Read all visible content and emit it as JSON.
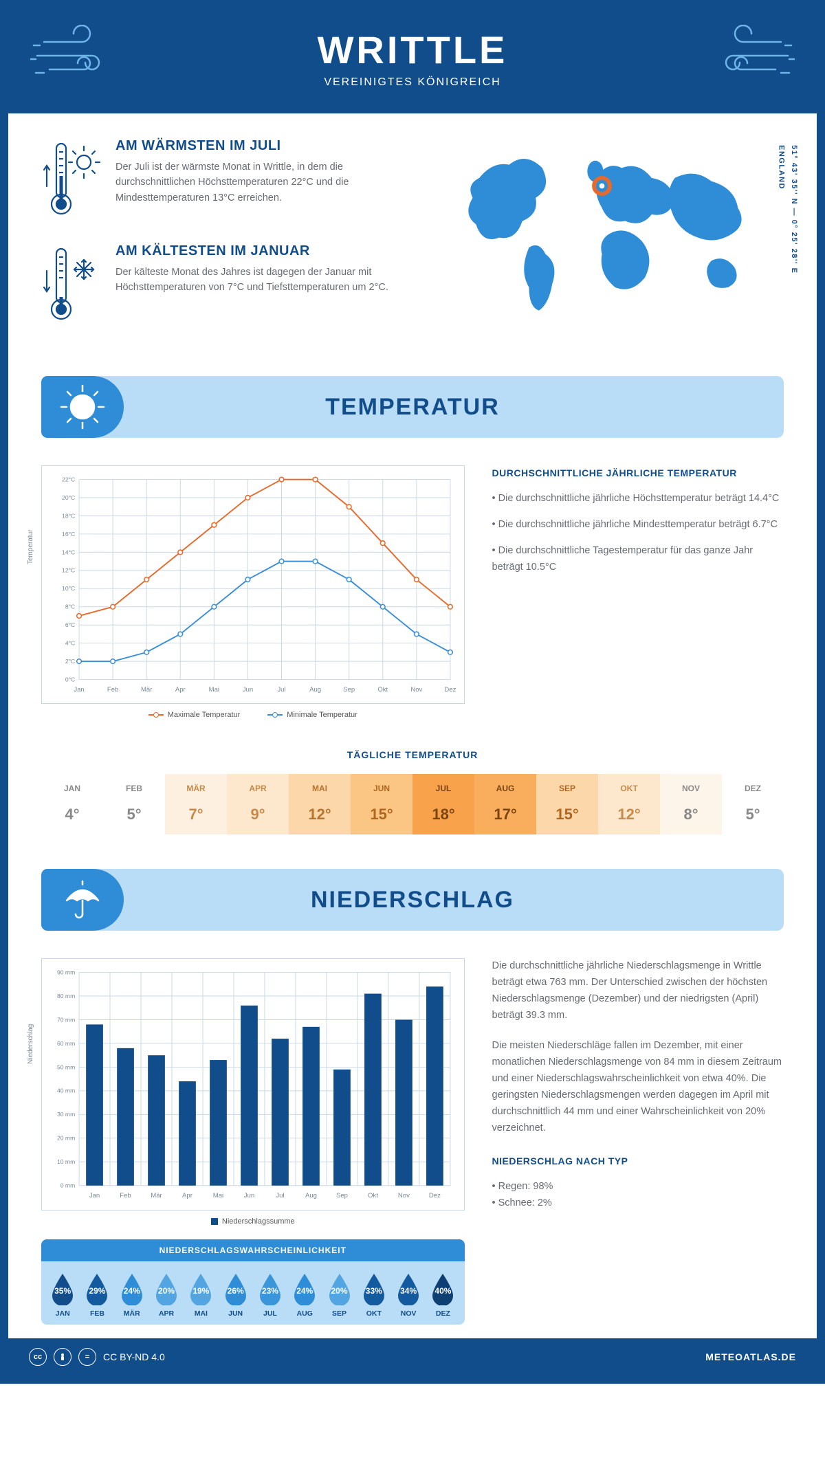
{
  "header": {
    "title": "WRITTLE",
    "subtitle": "VEREINIGTES KÖNIGREICH"
  },
  "coords": {
    "lat": "51° 43' 35'' N — 0° 25' 28'' E",
    "region": "ENGLAND"
  },
  "facts": {
    "warm": {
      "title": "AM WÄRMSTEN IM JULI",
      "text": "Der Juli ist der wärmste Monat in Writtle, in dem die durchschnittlichen Höchsttemperaturen 22°C und die Mindesttemperaturen 13°C erreichen."
    },
    "cold": {
      "title": "AM KÄLTESTEN IM JANUAR",
      "text": "Der kälteste Monat des Jahres ist dagegen der Januar mit Höchsttemperaturen von 7°C und Tiefsttemperaturen um 2°C."
    }
  },
  "sections": {
    "temp_title": "TEMPERATUR",
    "precip_title": "NIEDERSCHLAG"
  },
  "temp_chart": {
    "months": [
      "Jan",
      "Feb",
      "Mär",
      "Apr",
      "Mai",
      "Jun",
      "Jul",
      "Aug",
      "Sep",
      "Okt",
      "Nov",
      "Dez"
    ],
    "max_series": [
      7,
      8,
      11,
      14,
      17,
      20,
      22,
      22,
      19,
      15,
      11,
      8
    ],
    "min_series": [
      2,
      2,
      3,
      5,
      8,
      11,
      13,
      13,
      11,
      8,
      5,
      3
    ],
    "y_min": 0,
    "y_max": 22,
    "y_step": 2,
    "max_color": "#e86a2a",
    "min_color": "#3b8fd6",
    "grid_color": "#c8d7e5",
    "y_label": "Temperatur",
    "legend_max": "Maximale Temperatur",
    "legend_min": "Minimale Temperatur"
  },
  "temp_text": {
    "heading": "DURCHSCHNITTLICHE JÄHRLICHE TEMPERATUR",
    "b1": "• Die durchschnittliche jährliche Höchsttemperatur beträgt 14.4°C",
    "b2": "• Die durchschnittliche jährliche Mindesttemperatur beträgt 6.7°C",
    "b3": "• Die durchschnittliche Tagestemperatur für das ganze Jahr beträgt 10.5°C"
  },
  "daily_temp": {
    "title": "TÄGLICHE TEMPERATUR",
    "months": [
      "JAN",
      "FEB",
      "MÄR",
      "APR",
      "MAI",
      "JUN",
      "JUL",
      "AUG",
      "SEP",
      "OKT",
      "NOV",
      "DEZ"
    ],
    "values": [
      "4°",
      "5°",
      "7°",
      "9°",
      "12°",
      "15°",
      "18°",
      "17°",
      "15°",
      "12°",
      "8°",
      "5°"
    ],
    "colors": [
      "#ffffff",
      "#ffffff",
      "#fdf0e0",
      "#fde7cd",
      "#fcd7a9",
      "#fbc684",
      "#f8a34b",
      "#f9ae5d",
      "#fcd7a9",
      "#fde7cd",
      "#fdf4ea",
      "#ffffff"
    ],
    "text_colors": [
      "#888",
      "#888",
      "#c68a4a",
      "#c68a4a",
      "#b87330",
      "#b06520",
      "#7a4410",
      "#7a4410",
      "#b06520",
      "#c68a4a",
      "#888",
      "#888"
    ]
  },
  "precip_chart": {
    "months": [
      "Jan",
      "Feb",
      "Mär",
      "Apr",
      "Mai",
      "Jun",
      "Jul",
      "Aug",
      "Sep",
      "Okt",
      "Nov",
      "Dez"
    ],
    "values": [
      68,
      58,
      55,
      44,
      53,
      76,
      62,
      67,
      49,
      81,
      70,
      84
    ],
    "y_min": 0,
    "y_max": 90,
    "y_step": 10,
    "bar_color": "#114d8a",
    "grid_color": "#c8d7e5",
    "y_label": "Niederschlag",
    "legend": "Niederschlagssumme"
  },
  "precip_text": {
    "p1": "Die durchschnittliche jährliche Niederschlagsmenge in Writtle beträgt etwa 763 mm. Der Unterschied zwischen der höchsten Niederschlagsmenge (Dezember) und der niedrigsten (April) beträgt 39.3 mm.",
    "p2": "Die meisten Niederschläge fallen im Dezember, mit einer monatlichen Niederschlagsmenge von 84 mm in diesem Zeitraum und einer Niederschlagswahrscheinlichkeit von etwa 40%. Die geringsten Niederschlagsmengen werden dagegen im April mit durchschnittlich 44 mm und einer Wahrscheinlichkeit von 20% verzeichnet.",
    "type_h": "NIEDERSCHLAG NACH TYP",
    "type1": "• Regen: 98%",
    "type2": "• Schnee: 2%"
  },
  "prob": {
    "title": "NIEDERSCHLAGSWAHRSCHEINLICHKEIT",
    "months": [
      "JAN",
      "FEB",
      "MÄR",
      "APR",
      "MAI",
      "JUN",
      "JUL",
      "AUG",
      "SEP",
      "OKT",
      "NOV",
      "DEZ"
    ],
    "values": [
      "35%",
      "29%",
      "24%",
      "20%",
      "19%",
      "26%",
      "23%",
      "24%",
      "20%",
      "33%",
      "34%",
      "40%"
    ],
    "colors": [
      "#114d8a",
      "#135a9f",
      "#2e8dd6",
      "#52a5e0",
      "#52a5e0",
      "#2e8dd6",
      "#3b96d9",
      "#2e8dd6",
      "#52a5e0",
      "#135a9f",
      "#135a9f",
      "#0d3f73"
    ]
  },
  "footer": {
    "license": "CC BY-ND 4.0",
    "brand": "METEOATLAS.DE"
  }
}
